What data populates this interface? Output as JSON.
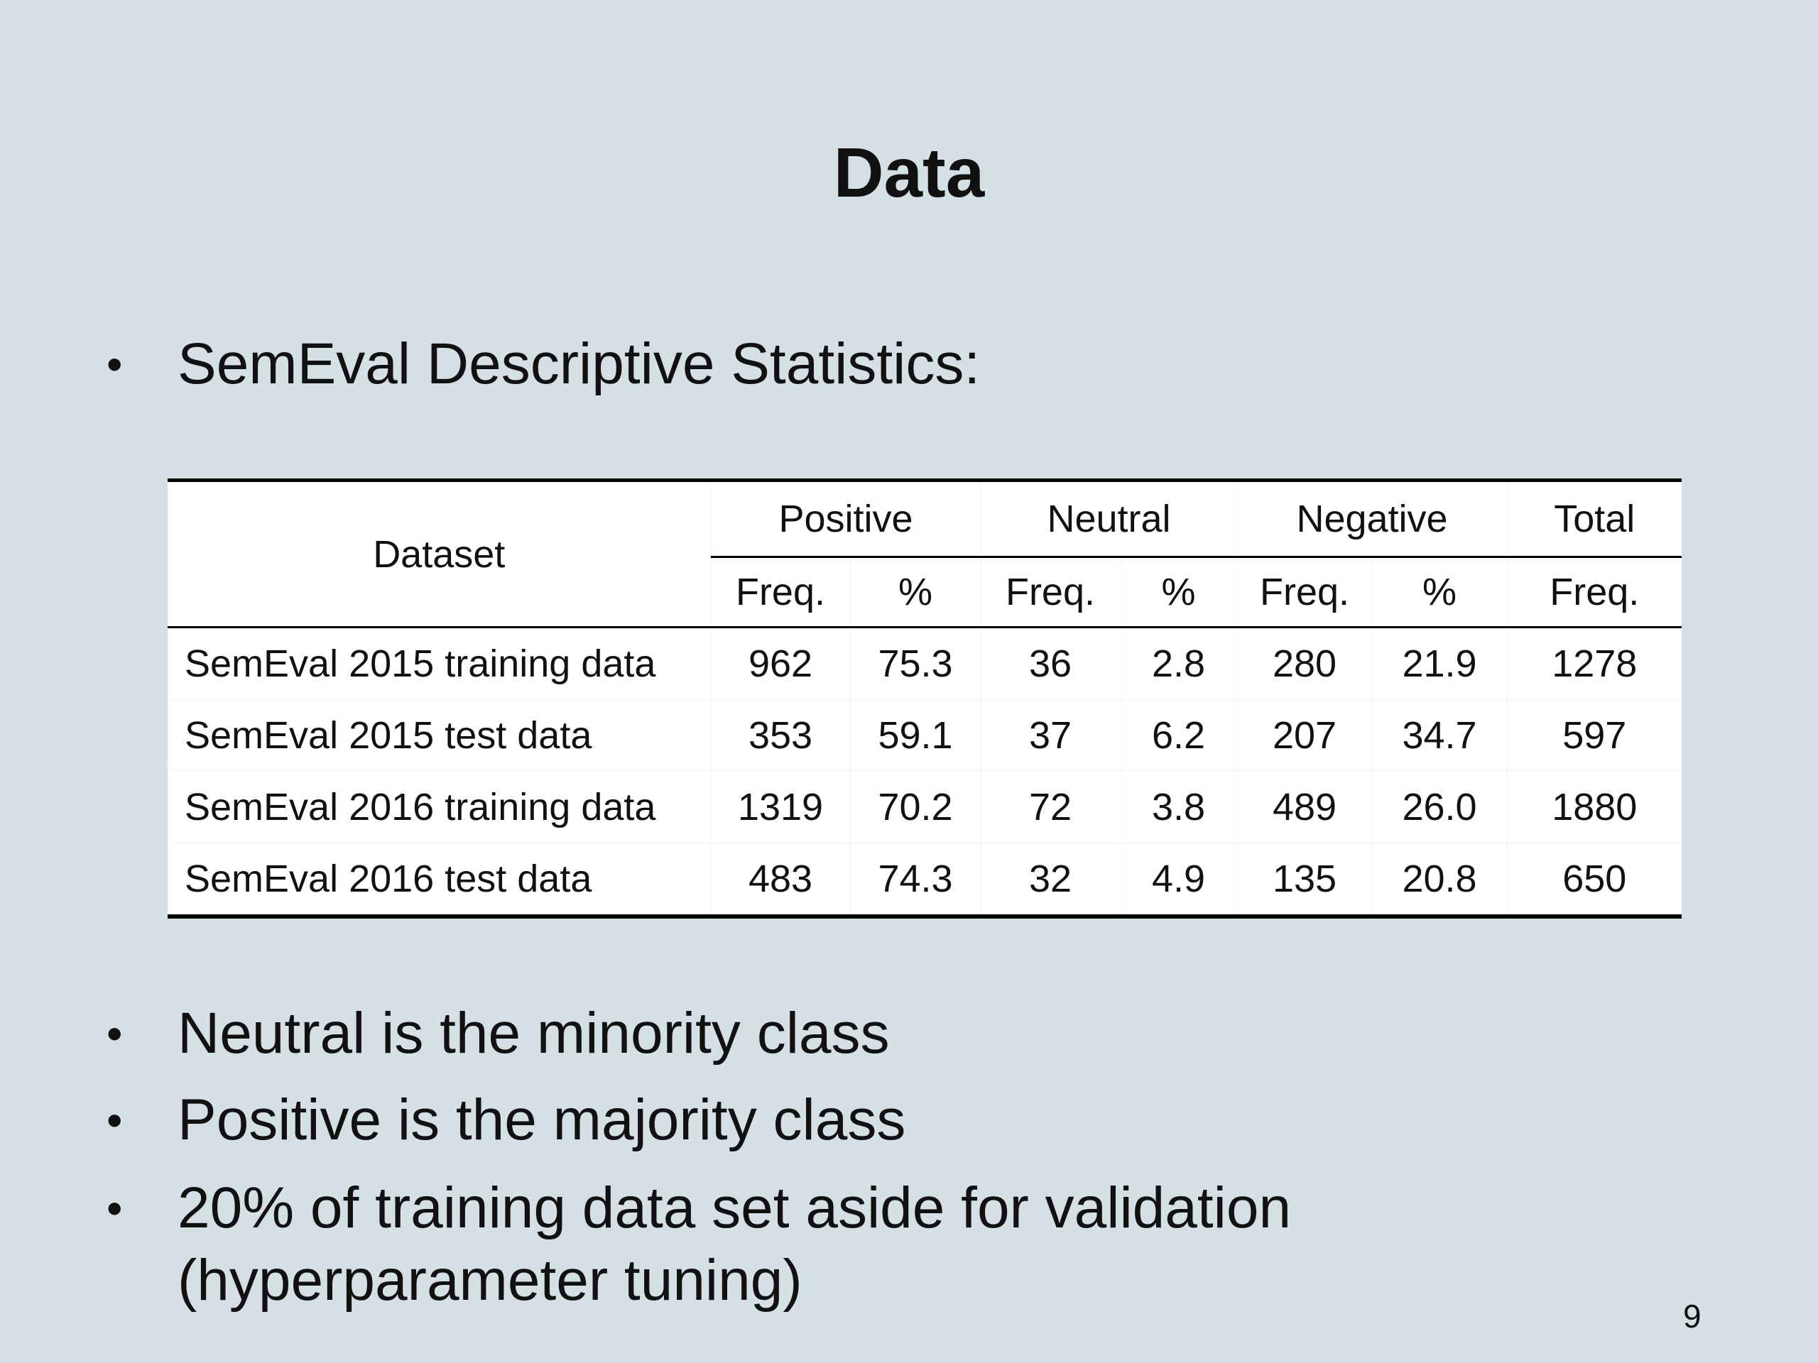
{
  "slide": {
    "title": "Data",
    "page_number": "9"
  },
  "bullets": [
    {
      "symbol": "•",
      "text": "SemEval Descriptive Statistics:"
    },
    {
      "symbol": "•",
      "text": "Neutral is the minority class"
    },
    {
      "symbol": "•",
      "text": "Positive is the majority class"
    },
    {
      "symbol": "•",
      "text": "20% of training data set aside for validation\n(hyperparameter tuning)"
    }
  ],
  "table": {
    "dataset_header": "Dataset",
    "groups": [
      "Positive",
      "Neutral",
      "Negative",
      "Total"
    ],
    "subheaders": [
      "Freq.",
      "%",
      "Freq.",
      "%",
      "Freq.",
      "%",
      "Freq."
    ],
    "rows": [
      {
        "dataset": "SemEval 2015 training data",
        "cells": [
          "962",
          "75.3",
          "36",
          "2.8",
          "280",
          "21.9",
          "1278"
        ]
      },
      {
        "dataset": "SemEval 2015 test data",
        "cells": [
          "353",
          "59.1",
          "37",
          "6.2",
          "207",
          "34.7",
          "597"
        ]
      },
      {
        "dataset": "SemEval 2016 training data",
        "cells": [
          "1319",
          "70.2",
          "72",
          "3.8",
          "489",
          "26.0",
          "1880"
        ]
      },
      {
        "dataset": "SemEval 2016 test data",
        "cells": [
          "483",
          "74.3",
          "32",
          "4.9",
          "135",
          "20.8",
          "650"
        ]
      }
    ]
  }
}
